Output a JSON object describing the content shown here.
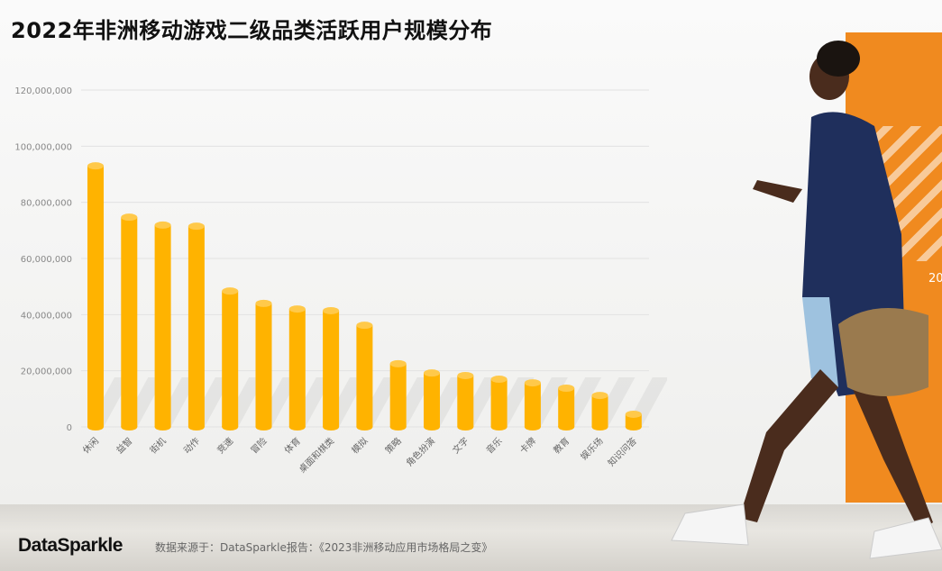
{
  "title": "2022年非洲移动游戏二级品类活跃用户规模分布",
  "photo_badge_text": "20",
  "footer": {
    "logo": "DataSparkle",
    "source": "数据来源于：DataSparkle报告：《2023非洲移动应用市场格局之变》"
  },
  "colors": {
    "bar": "#ffb300",
    "bar_top": "#ffc94a",
    "accent_panel": "#f08a1f"
  },
  "chart_data": {
    "type": "bar",
    "style": "3d-cylinder",
    "categories": [
      "休闲",
      "益智",
      "街机",
      "动作",
      "竞速",
      "冒险",
      "体育",
      "桌面和棋类",
      "模拟",
      "策略",
      "角色扮演",
      "文字",
      "音乐",
      "卡牌",
      "教育",
      "娱乐场",
      "知识问答"
    ],
    "values": [
      93000000,
      74700000,
      71900000,
      71500000,
      48400000,
      44000000,
      42000000,
      41400000,
      36200000,
      22500000,
      19200000,
      18300000,
      17000000,
      15700000,
      13800000,
      11200000,
      4500000
    ],
    "yticks": [
      "0",
      "20,000,000",
      "40,000,000",
      "60,000,000",
      "80,000,000",
      "100,000,000",
      "120,000,000"
    ],
    "ylim": [
      0,
      120000000
    ],
    "grid": true,
    "xlabel": "",
    "ylabel": ""
  }
}
